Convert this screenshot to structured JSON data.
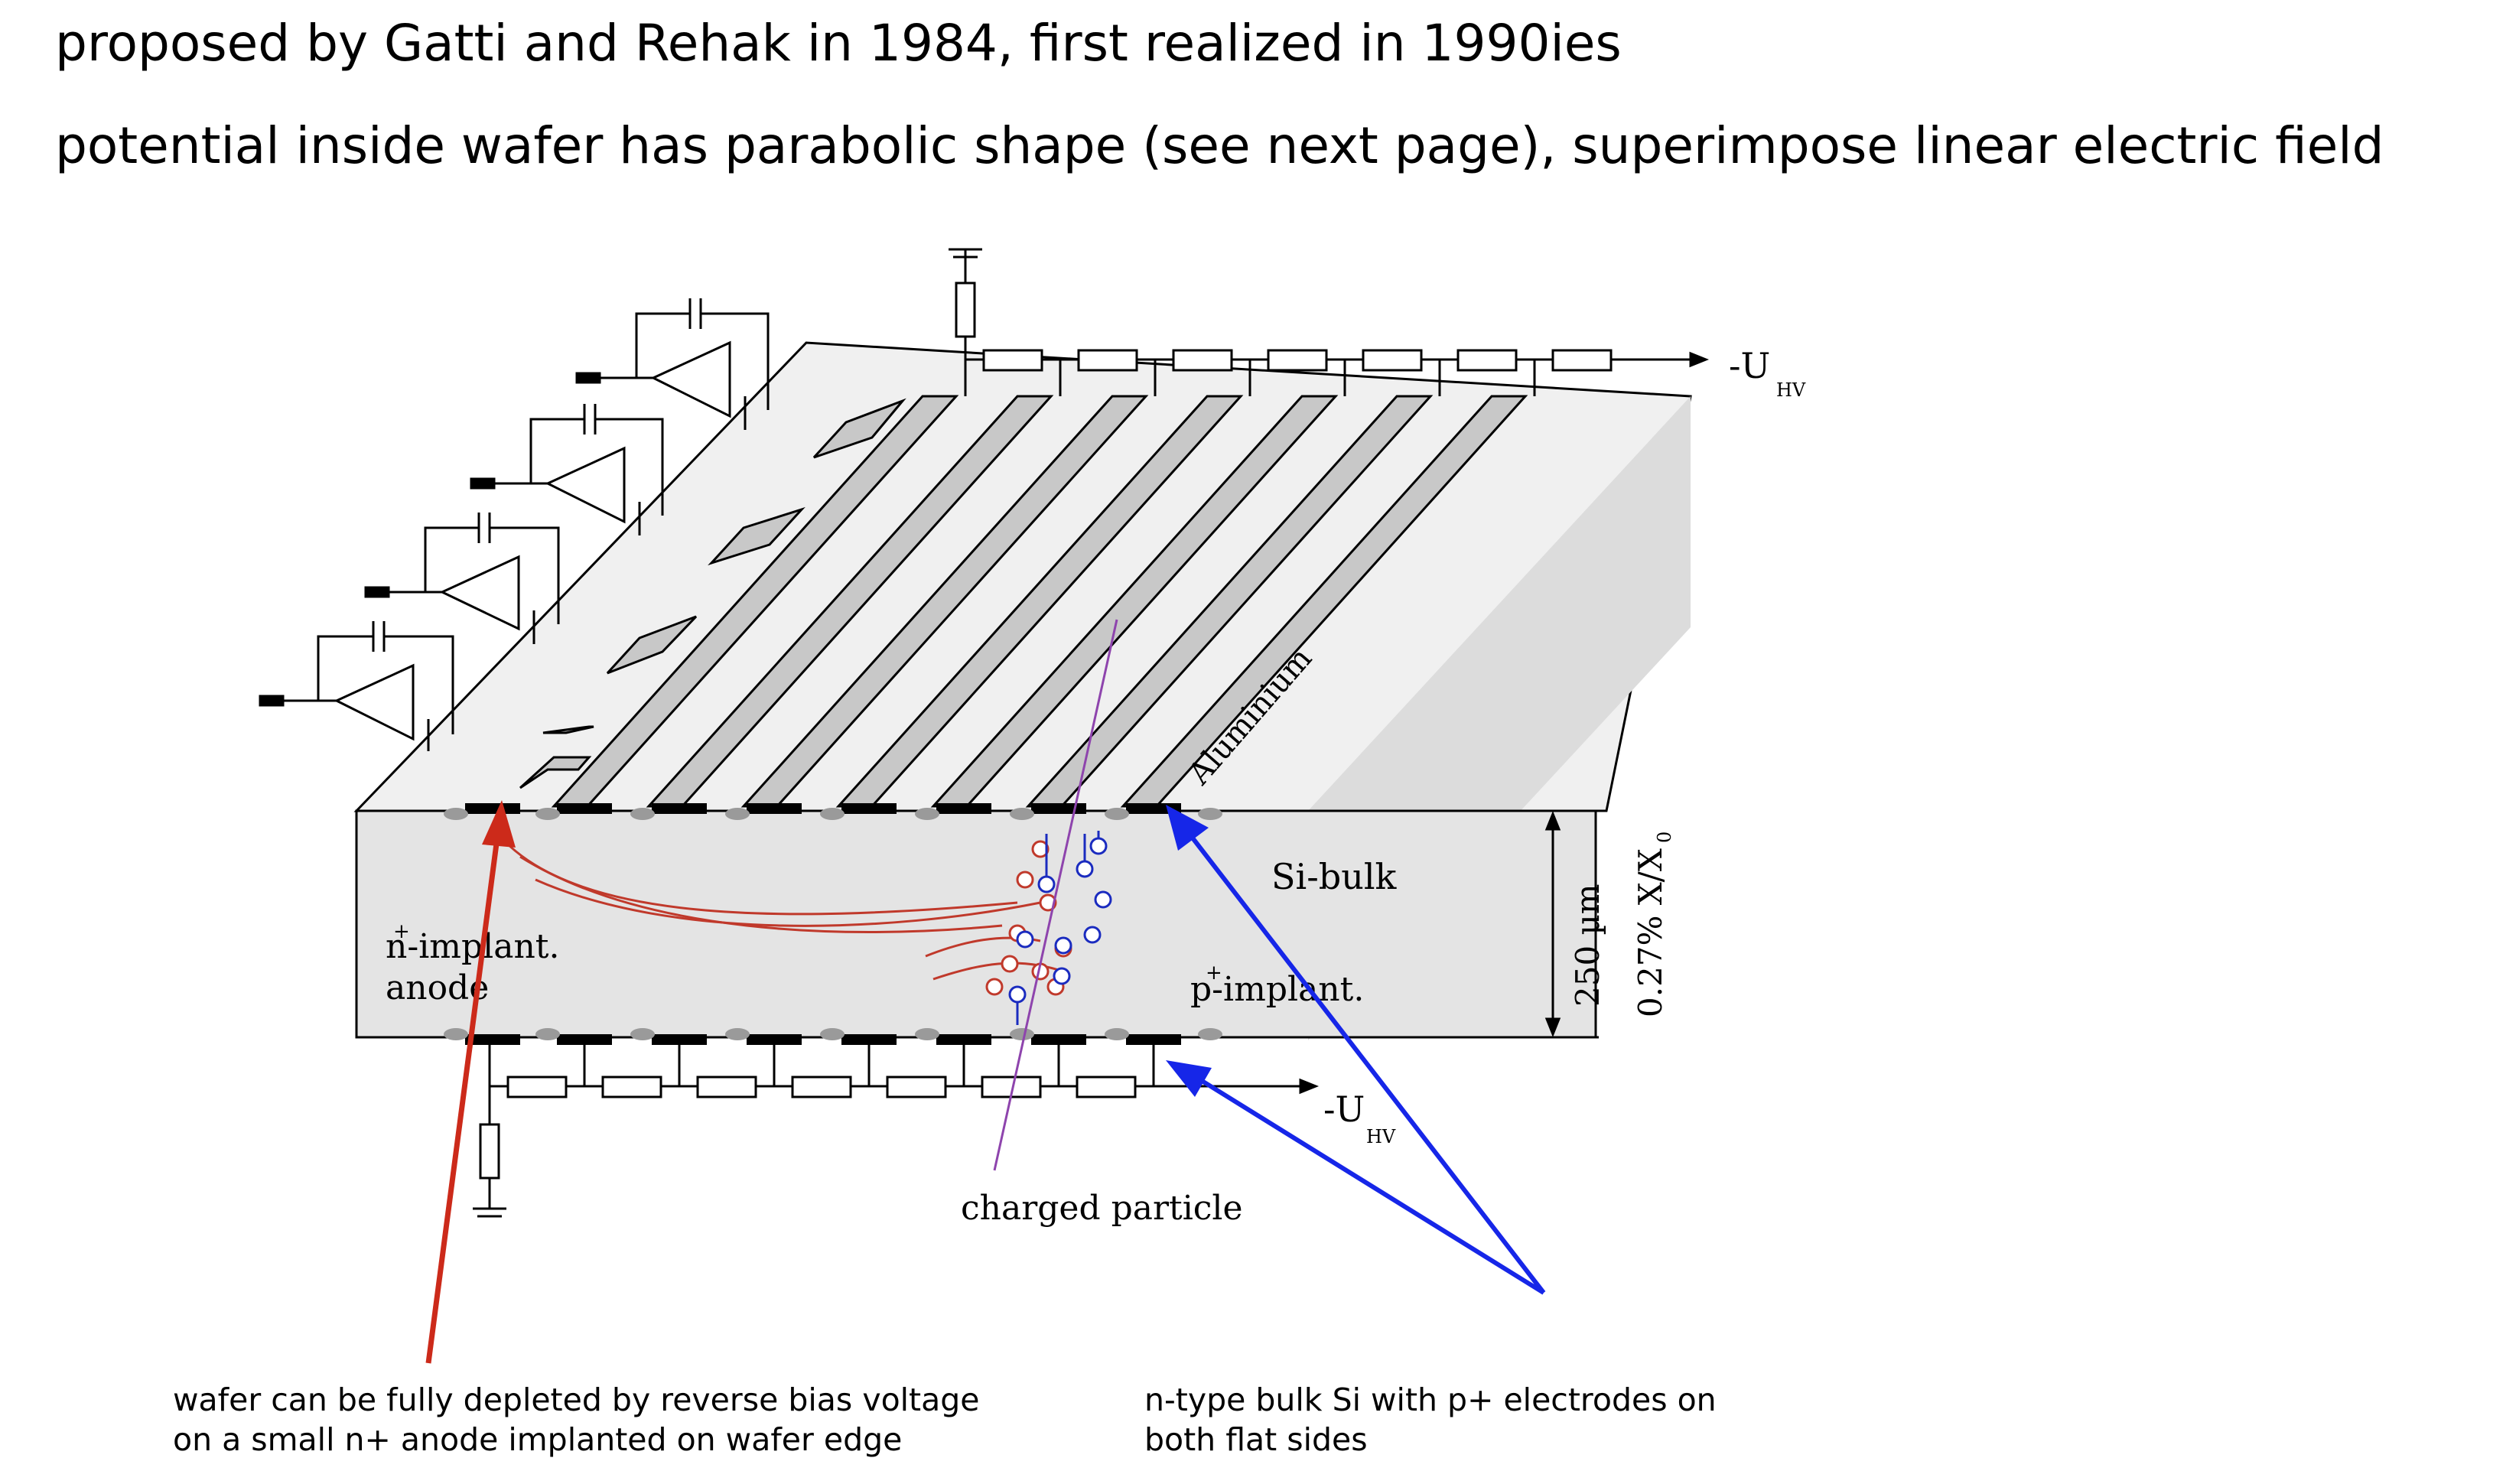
{
  "header": {
    "line1": "proposed by Gatti and Rehak in 1984, first realized in 1990ies",
    "line2": "potential inside wafer has parabolic shape (see next page), superimpose linear electric field"
  },
  "diagram": {
    "top_voltage_label": "-U",
    "top_voltage_sub": "HV",
    "bottom_voltage_label": "-U",
    "bottom_voltage_sub": "HV",
    "aluminium_label": "Aluminium",
    "si_bulk_label": "Si-bulk",
    "n_implant_label": "n-implant.",
    "n_implant_sup": "+",
    "anode_label": "anode",
    "p_implant_label": "p-implant.",
    "p_implant_sup": "+",
    "thickness_label": "250 µm",
    "radiation_length_label": "0.27% X/X",
    "radiation_length_sub": "0",
    "charged_particle_label": "charged particle"
  },
  "captions": {
    "left_line1": "wafer can be fully depleted by reverse bias voltage",
    "left_line2": "on a small n+ anode implanted on wafer edge",
    "right_line1": "n-type bulk Si with p+ electrodes on",
    "right_line2": "both flat sides"
  },
  "colors": {
    "red_arrow": "#cc2a1a",
    "blue_arrow": "#1626e8",
    "electron_tracks": "#c0392b",
    "hole_tracks": "#1a2bbf",
    "particle_track": "#8e44ad",
    "wafer_fill": "#e4e4e4",
    "strip_fill": "#c8c8c8"
  }
}
